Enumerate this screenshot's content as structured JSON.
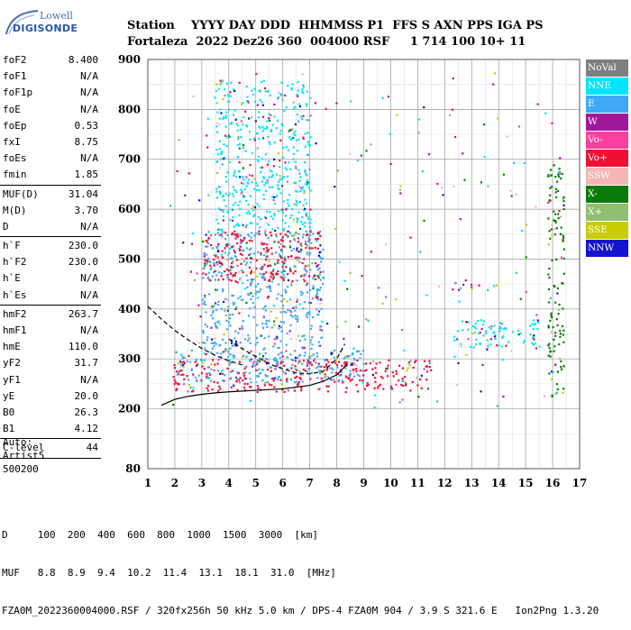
{
  "logo": {
    "line1": "Lowell",
    "line2": "DIGISONDE"
  },
  "header": {
    "cols": [
      "Station",
      "YYYY",
      "DAY",
      "DDD",
      "HHMMSS",
      "P1",
      "FFS",
      "S",
      "AXN",
      "PPS",
      "IGA",
      "PS"
    ],
    "vals": [
      "Fortaleza",
      "2022",
      "Dez26",
      "360",
      "004000",
      "RSF",
      "",
      "1",
      "714",
      "100",
      "10+",
      "11"
    ]
  },
  "params": [
    {
      "name": "foF2",
      "value": "8.400"
    },
    {
      "name": "foF1",
      "value": "N/A"
    },
    {
      "name": "foF1p",
      "value": "N/A"
    },
    {
      "name": "foE",
      "value": "N/A"
    },
    {
      "name": "foEp",
      "value": "0.53"
    },
    {
      "name": "fxI",
      "value": "8.75"
    },
    {
      "name": "foEs",
      "value": "N/A"
    },
    {
      "name": "fmin",
      "value": "1.85"
    },
    {
      "sep": true
    },
    {
      "name": "MUF(D)",
      "value": "31.04"
    },
    {
      "name": "M(D)",
      "value": "3.70"
    },
    {
      "name": "D",
      "value": "N/A"
    },
    {
      "sep": true
    },
    {
      "name": "h`F",
      "value": "230.0"
    },
    {
      "name": "h`F2",
      "value": "230.0"
    },
    {
      "name": "h`E",
      "value": "N/A"
    },
    {
      "name": "h`Es",
      "value": "N/A"
    },
    {
      "sep": true
    },
    {
      "name": "hmF2",
      "value": "263.7"
    },
    {
      "name": "hmF1",
      "value": "N/A"
    },
    {
      "name": "hmE",
      "value": "110.0"
    },
    {
      "name": "yF2",
      "value": "31.7"
    },
    {
      "name": "yF1",
      "value": "N/A"
    },
    {
      "name": "yE",
      "value": "20.0"
    },
    {
      "name": "B0",
      "value": "26.3"
    },
    {
      "name": "B1",
      "value": "4.12"
    },
    {
      "sep": true
    },
    {
      "name": "C-level",
      "value": "44"
    },
    {
      "sep": true
    }
  ],
  "auto": {
    "line1": "Auto:",
    "line2": "Artist5",
    "line3": "500200"
  },
  "legend": [
    {
      "label": "NoVal",
      "bg": "#7f7f7f",
      "fg": "#ffffff"
    },
    {
      "label": "NNE",
      "bg": "#00e5ff",
      "fg": "#ffffff"
    },
    {
      "label": "E",
      "bg": "#3fa9f5",
      "fg": "#ffffff"
    },
    {
      "label": "W",
      "bg": "#a0179b",
      "fg": "#ffffff"
    },
    {
      "label": "Vo-",
      "bg": "#ff3f9f",
      "fg": "#ffffff"
    },
    {
      "label": "Vo+",
      "bg": "#f01035",
      "fg": "#ffffff"
    },
    {
      "label": "SSW",
      "bg": "#f6b6b6",
      "fg": "#ffffff"
    },
    {
      "label": "X-",
      "bg": "#0a7a0a",
      "fg": "#ffffff"
    },
    {
      "label": "X+",
      "bg": "#8fbf6f",
      "fg": "#ffffff"
    },
    {
      "label": "SSE",
      "bg": "#c8cc00",
      "fg": "#ffffff"
    },
    {
      "label": "NNW",
      "bg": "#1414d0",
      "fg": "#ffffff"
    }
  ],
  "footer": {
    "line1": "D     100  200  400  600  800  1000  1500  3000  [km]",
    "line2": "MUF   8.8  8.9  9.4  10.2  11.4  13.1  18.1  31.0  [MHz]",
    "line3": "FZA0M_2022360004000.RSF / 320fx256h 50 kHz 5.0 km / DPS-4 FZA0M 904 / 3.9 S 321.6 E   Ion2Png 1.3.20"
  },
  "chart_data": {
    "type": "scatter",
    "title": "",
    "xlabel": "",
    "ylabel": "",
    "xlim": [
      1,
      17
    ],
    "ylim": [
      80,
      900
    ],
    "xticks": [
      1,
      2,
      3,
      4,
      5,
      6,
      7,
      8,
      9,
      10,
      11,
      12,
      13,
      14,
      15,
      16,
      17
    ],
    "yticks": [
      80,
      200,
      300,
      400,
      500,
      600,
      700,
      800,
      900
    ],
    "grid": true,
    "legend_position": "right",
    "clusters": [
      {
        "note": "F-trace band",
        "x": [
          1.9,
          11.5
        ],
        "y": [
          235,
          300
        ],
        "color": "#f01035"
      },
      {
        "note": "F-trace upper",
        "x": [
          2.0,
          9.0
        ],
        "y": [
          255,
          320
        ],
        "color": "#3fa9f5"
      },
      {
        "note": "spread F",
        "x": [
          3.0,
          7.5
        ],
        "y": [
          300,
          560
        ],
        "color": "#3fa9f5"
      },
      {
        "note": "second hop",
        "x": [
          3.0,
          7.4
        ],
        "y": [
          455,
          560
        ],
        "color": "#f01035"
      },
      {
        "note": "spread F top",
        "x": [
          3.5,
          7.0
        ],
        "y": [
          560,
          860
        ],
        "color": "#00e5ff"
      },
      {
        "note": "echo 12.5",
        "x": [
          12.0,
          13.0
        ],
        "y": [
          440,
          460
        ],
        "color": "#a0179b"
      },
      {
        "note": "multi 13-15",
        "x": [
          12.3,
          15.5
        ],
        "y": [
          320,
          380
        ],
        "color": "#00e5ff"
      },
      {
        "note": "X trace",
        "x": [
          15.8,
          16.4
        ],
        "y": [
          220,
          700
        ],
        "color": "#0a7a0a"
      }
    ],
    "curves": [
      {
        "name": "",
        "style": "solid",
        "x": [
          1.5,
          2.0,
          2.5,
          3.0,
          3.5,
          4.0,
          5.0,
          6.0,
          7.0,
          7.5,
          8.0,
          8.4
        ],
        "y": [
          207,
          219,
          225,
          229,
          232,
          234,
          237,
          240,
          247,
          255,
          268,
          290
        ]
      },
      {
        "name": "",
        "style": "dashed",
        "x": [
          1.0,
          1.5,
          2.0,
          2.5,
          3.0,
          3.5,
          4.0,
          4.5
        ],
        "y": [
          405,
          380,
          357,
          338,
          321,
          307,
          296,
          288
        ]
      },
      {
        "name": "",
        "style": "dashed",
        "x": [
          4.0,
          4.5,
          5.0,
          5.5,
          6.0,
          6.5,
          7.0,
          7.5,
          8.0,
          8.3
        ],
        "y": [
          340,
          320,
          305,
          290,
          280,
          272,
          270,
          275,
          300,
          330
        ]
      }
    ]
  }
}
